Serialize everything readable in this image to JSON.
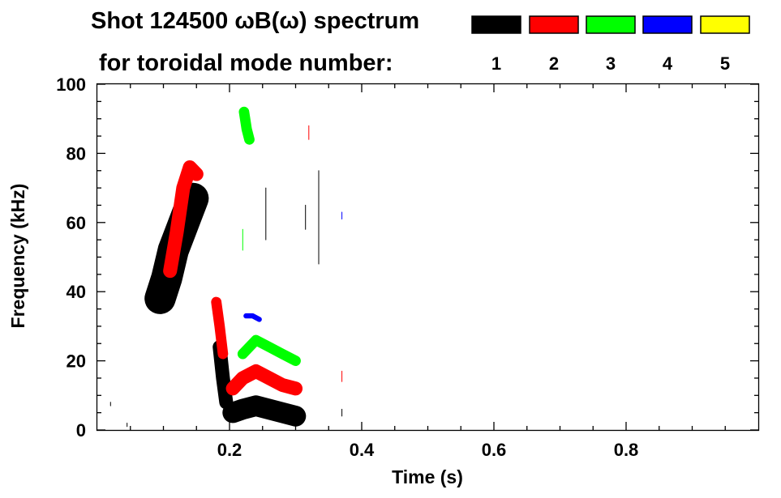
{
  "chart_data": {
    "type": "heatmap",
    "title": "Shot 124500 ωB(ω) spectrum",
    "legend_title": "for toroidal mode number:",
    "xlabel": "Time (s)",
    "ylabel": "Frequency (kHz)",
    "xlim": [
      0.0,
      1.0
    ],
    "ylim": [
      0,
      100
    ],
    "x_ticks": [
      0.2,
      0.4,
      0.6,
      0.8
    ],
    "x_tick_labels": [
      "0.2",
      "0.4",
      "0.6",
      "0.8"
    ],
    "x_minor_step": 0.05,
    "y_ticks": [
      0,
      20,
      40,
      60,
      80,
      100
    ],
    "y_tick_labels": [
      "0",
      "20",
      "40",
      "60",
      "80",
      "100"
    ],
    "y_minor_step": 5,
    "modes": [
      {
        "n": 1,
        "label": "1",
        "color": "#000000"
      },
      {
        "n": 2,
        "label": "2",
        "color": "#ff0000"
      },
      {
        "n": 3,
        "label": "3",
        "color": "#00ff00"
      },
      {
        "n": 4,
        "label": "4",
        "color": "#0000ff"
      },
      {
        "n": 5,
        "label": "5",
        "color": "#ffff00"
      }
    ],
    "features": [
      {
        "mode": 1,
        "shape": "band",
        "name": "n1-chirp-upper",
        "points": [
          [
            0.095,
            38
          ],
          [
            0.105,
            44
          ],
          [
            0.115,
            52
          ],
          [
            0.125,
            57
          ],
          [
            0.135,
            62
          ],
          [
            0.145,
            67
          ]
        ],
        "width": 9
      },
      {
        "mode": 1,
        "shape": "band",
        "name": "n1-burst-mid",
        "points": [
          [
            0.185,
            24
          ],
          [
            0.19,
            15
          ],
          [
            0.195,
            8
          ]
        ],
        "width": 4
      },
      {
        "mode": 1,
        "shape": "band",
        "name": "n1-low-cluster",
        "points": [
          [
            0.205,
            5
          ],
          [
            0.22,
            6
          ],
          [
            0.24,
            7
          ],
          [
            0.26,
            6
          ],
          [
            0.28,
            5
          ],
          [
            0.3,
            4
          ]
        ],
        "width": 6
      },
      {
        "mode": 2,
        "shape": "band",
        "name": "n2-chirp-upper",
        "points": [
          [
            0.11,
            46
          ],
          [
            0.12,
            57
          ],
          [
            0.13,
            70
          ],
          [
            0.14,
            76
          ],
          [
            0.15,
            74
          ]
        ],
        "width": 4
      },
      {
        "mode": 2,
        "shape": "band",
        "name": "n2-burst-mid",
        "points": [
          [
            0.18,
            37
          ],
          [
            0.185,
            30
          ],
          [
            0.19,
            22
          ]
        ],
        "width": 3
      },
      {
        "mode": 2,
        "shape": "band",
        "name": "n2-low-cluster",
        "points": [
          [
            0.205,
            12
          ],
          [
            0.22,
            15
          ],
          [
            0.24,
            17
          ],
          [
            0.26,
            15
          ],
          [
            0.28,
            13
          ],
          [
            0.3,
            12
          ]
        ],
        "width": 4
      },
      {
        "mode": 3,
        "shape": "band",
        "name": "n3-mid-cluster",
        "points": [
          [
            0.22,
            22
          ],
          [
            0.24,
            26
          ],
          [
            0.26,
            24
          ],
          [
            0.28,
            22
          ],
          [
            0.3,
            20
          ]
        ],
        "width": 3
      },
      {
        "mode": 3,
        "shape": "band",
        "name": "n3-high-blob",
        "points": [
          [
            0.222,
            92
          ],
          [
            0.226,
            87
          ],
          [
            0.23,
            84
          ]
        ],
        "width": 3
      },
      {
        "mode": 4,
        "shape": "band",
        "name": "n4-blob",
        "points": [
          [
            0.225,
            33
          ],
          [
            0.235,
            33
          ],
          [
            0.245,
            32
          ]
        ],
        "width": 1.5
      },
      {
        "mode": 1,
        "shape": "line",
        "name": "n1-vertical-streak",
        "points": [
          [
            0.335,
            75
          ],
          [
            0.335,
            48
          ]
        ],
        "width": 1
      },
      {
        "mode": 1,
        "shape": "line",
        "name": "n1-streak-a",
        "points": [
          [
            0.255,
            70
          ],
          [
            0.255,
            55
          ]
        ],
        "width": 1
      },
      {
        "mode": 1,
        "shape": "line",
        "name": "n1-streak-b",
        "points": [
          [
            0.315,
            65
          ],
          [
            0.315,
            58
          ]
        ],
        "width": 1
      },
      {
        "mode": 3,
        "shape": "line",
        "name": "n3-streak",
        "points": [
          [
            0.22,
            58
          ],
          [
            0.22,
            52
          ]
        ],
        "width": 1
      },
      {
        "mode": 2,
        "shape": "line",
        "name": "n2-streak-a",
        "points": [
          [
            0.32,
            88
          ],
          [
            0.32,
            84
          ]
        ],
        "width": 1
      },
      {
        "mode": 2,
        "shape": "line",
        "name": "n2-streak-b",
        "points": [
          [
            0.37,
            17
          ],
          [
            0.37,
            14
          ]
        ],
        "width": 1
      },
      {
        "mode": 1,
        "shape": "line",
        "name": "n1-speck-a",
        "points": [
          [
            0.02,
            8
          ],
          [
            0.02,
            7
          ]
        ],
        "width": 1
      },
      {
        "mode": 1,
        "shape": "line",
        "name": "n1-speck-b",
        "points": [
          [
            0.045,
            2
          ],
          [
            0.045,
            1
          ]
        ],
        "width": 1
      },
      {
        "mode": 1,
        "shape": "line",
        "name": "n1-speck-c",
        "points": [
          [
            0.37,
            6
          ],
          [
            0.37,
            4
          ]
        ],
        "width": 1
      },
      {
        "mode": 4,
        "shape": "line",
        "name": "n4-speck",
        "points": [
          [
            0.37,
            63
          ],
          [
            0.37,
            61
          ]
        ],
        "width": 1
      }
    ]
  }
}
